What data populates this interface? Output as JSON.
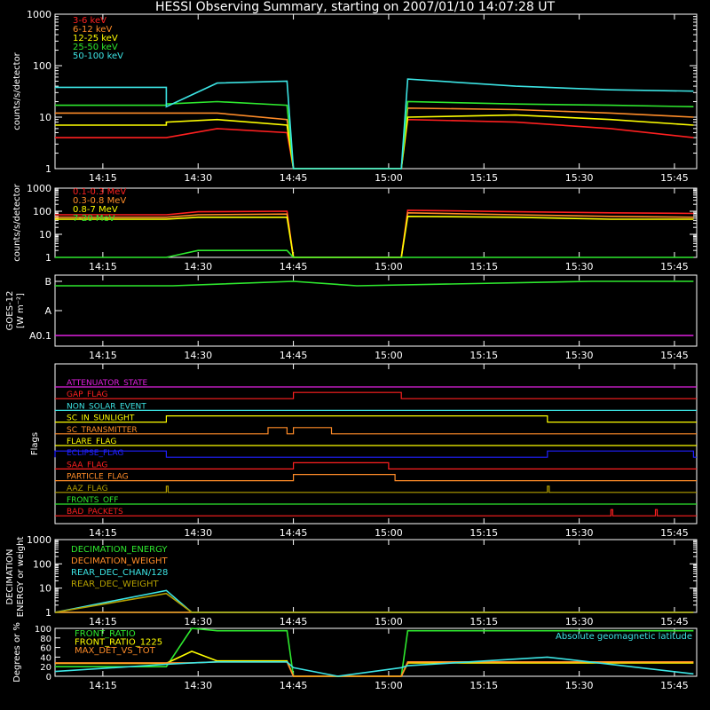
{
  "title": "HESSI Observing Summary, starting on 2007/01/10 14:07:28 UT",
  "colors": {
    "axis": "#ffffff",
    "red": "#ff2020",
    "orange": "#ff8c28",
    "yellow": "#ffff00",
    "green": "#2ee82e",
    "cyan": "#3ce4e4",
    "magenta": "#e020e0",
    "blue": "#2020ff",
    "olive": "#b4a000"
  },
  "time_ticks": [
    "14:15",
    "14:30",
    "14:45",
    "15:00",
    "15:15",
    "15:30",
    "15:45"
  ],
  "panels": {
    "lo": {
      "ylabel": "counts/s/detector",
      "yticks": [
        "1",
        "10",
        "100",
        "1000"
      ],
      "legend": [
        {
          "label": "3-6 keV",
          "color": "#ff2020"
        },
        {
          "label": "6-12 keV",
          "color": "#ff8c28"
        },
        {
          "label": "12-25 keV",
          "color": "#ffff00"
        },
        {
          "label": "25-50 keV",
          "color": "#2ee82e"
        },
        {
          "label": "50-100 keV",
          "color": "#3ce4e4"
        }
      ]
    },
    "hi": {
      "ylabel": "counts/s/detector",
      "yticks": [
        "1",
        "10",
        "100",
        "1000"
      ],
      "legend": [
        {
          "label": "0.1-0.3 MeV",
          "color": "#ff2020"
        },
        {
          "label": "0.3-0.8 MeV",
          "color": "#ff8c28"
        },
        {
          "label": "0.8-7 MeV",
          "color": "#ffff00"
        },
        {
          "label": "7-20 MeV",
          "color": "#2ee82e"
        }
      ]
    },
    "goes": {
      "ylabel1": "GOES-12",
      "ylabel2": "[W m⁻²]",
      "yticks": [
        "A0.1",
        "A",
        "B"
      ]
    },
    "flags": {
      "ylabel": "Flags",
      "items": [
        {
          "label": "ATTENUATOR_STATE",
          "color": "#e020e0"
        },
        {
          "label": "GAP_FLAG",
          "color": "#ff2020"
        },
        {
          "label": "NON_SOLAR_EVENT",
          "color": "#3ce4e4"
        },
        {
          "label": "SC_IN_SUNLIGHT",
          "color": "#ffff00"
        },
        {
          "label": "SC_TRANSMITTER",
          "color": "#ff8c28"
        },
        {
          "label": "FLARE_FLAG",
          "color": "#ffff00"
        },
        {
          "label": "ECLIPSE_FLAG",
          "color": "#2020ff"
        },
        {
          "label": "SAA_FLAG",
          "color": "#ff2020"
        },
        {
          "label": "PARTICLE_FLAG",
          "color": "#ff8c28"
        },
        {
          "label": "AAZ_FLAG",
          "color": "#b4a000"
        },
        {
          "label": "FRONTS_OFF",
          "color": "#2ee82e"
        },
        {
          "label": "BAD_PACKETS",
          "color": "#ff2020"
        }
      ]
    },
    "dec": {
      "ylabel1": "DECIMATION",
      "ylabel2": "ENERGY or weight",
      "yticks": [
        "1",
        "10",
        "100",
        "1000"
      ],
      "legend": [
        {
          "label": "DECIMATION_ENERGY",
          "color": "#2ee82e"
        },
        {
          "label": "DECIMATION_WEIGHT",
          "color": "#ff8c28"
        },
        {
          "label": "REAR_DEC_CHAN/128",
          "color": "#3ce4e4"
        },
        {
          "label": "REAR_DEC_WEIGHT",
          "color": "#b4a000"
        }
      ]
    },
    "misc": {
      "ylabel": "Degrees or %",
      "yticks": [
        "0",
        "20",
        "40",
        "60",
        "80",
        "100"
      ],
      "legend": [
        {
          "label": "FRONT_RATIO",
          "color": "#2ee82e"
        },
        {
          "label": "FRONT_RATIO_1225",
          "color": "#ffff00"
        },
        {
          "label": "MAX_DET_VS_TOT",
          "color": "#ff8c28"
        }
      ],
      "note": {
        "label": "Absolute geomagnetic latitude",
        "color": "#3ce4e4"
      }
    }
  },
  "chart_data": [
    {
      "type": "line",
      "title": "HESSI Observing Summary, starting on 2007/01/10 14:07:28 UT",
      "ylabel": "counts/s/detector",
      "yscale": "log",
      "ylim": [
        1,
        1000
      ],
      "x": [
        "14:07",
        "14:25",
        "14:25",
        "14:33",
        "14:44",
        "14:45",
        "15:02",
        "15:03",
        "15:20",
        "15:35",
        "15:48"
      ],
      "series": [
        {
          "name": "3-6 keV",
          "values": [
            4,
            4,
            4,
            6,
            5,
            1,
            1,
            9,
            8,
            6,
            4
          ]
        },
        {
          "name": "6-12 keV",
          "values": [
            12,
            12,
            12,
            12,
            9,
            1,
            1,
            15,
            14,
            12,
            10
          ]
        },
        {
          "name": "12-25 keV",
          "values": [
            7,
            7,
            8,
            9,
            7,
            1,
            1,
            10,
            11,
            9,
            7
          ]
        },
        {
          "name": "25-50 keV",
          "values": [
            17,
            17,
            18,
            20,
            17,
            1,
            1,
            20,
            18,
            17,
            16
          ]
        },
        {
          "name": "50-100 keV",
          "values": [
            38,
            38,
            16,
            46,
            50,
            1,
            1,
            55,
            40,
            34,
            32
          ]
        }
      ]
    },
    {
      "type": "line",
      "ylabel": "counts/s/detector",
      "yscale": "log",
      "ylim": [
        1,
        1000
      ],
      "x": [
        "14:07",
        "14:25",
        "14:30",
        "14:44",
        "14:45",
        "15:02",
        "15:03",
        "15:20",
        "15:35",
        "15:48"
      ],
      "series": [
        {
          "name": "0.1-0.3 MeV",
          "values": [
            70,
            70,
            95,
            100,
            1,
            1,
            110,
            95,
            85,
            80
          ]
        },
        {
          "name": "0.3-0.8 MeV",
          "values": [
            55,
            55,
            70,
            75,
            1,
            1,
            85,
            70,
            60,
            55
          ]
        },
        {
          "name": "0.8-7 MeV",
          "values": [
            45,
            45,
            55,
            55,
            1,
            1,
            60,
            55,
            45,
            45
          ]
        },
        {
          "name": "7-20 MeV",
          "values": [
            1,
            1,
            2,
            2,
            1,
            1,
            1,
            1,
            1,
            1
          ]
        }
      ]
    },
    {
      "type": "line",
      "ylabel": "GOES-12 [W m⁻²]",
      "yticks": [
        "A0.1",
        "A",
        "B"
      ],
      "x": [
        "14:07",
        "14:26",
        "14:45",
        "14:55",
        "15:32",
        "15:48"
      ],
      "series": [
        {
          "values": [
            "B-",
            "B-",
            "B",
            "B-",
            "B",
            "B"
          ]
        },
        {
          "values": [
            "A0.1",
            "A0.1",
            "A0.1",
            "A0.1",
            "A0.1",
            "A0.1"
          ]
        }
      ]
    },
    {
      "type": "table",
      "ylabel": "Flags",
      "columns": [
        "flag",
        "on_intervals"
      ],
      "rows": [
        [
          "ATTENUATOR_STATE",
          "none"
        ],
        [
          "GAP_FLAG",
          "14:45-15:02"
        ],
        [
          "NON_SOLAR_EVENT",
          "none"
        ],
        [
          "SC_IN_SUNLIGHT",
          "14:25-15:25"
        ],
        [
          "SC_TRANSMITTER",
          "14:41-14:44, 14:45-14:51"
        ],
        [
          "FLARE_FLAG",
          "none"
        ],
        [
          "ECLIPSE_FLAG",
          "14:07-14:25, 15:25-15:48"
        ],
        [
          "SAA_FLAG",
          "14:45-15:00"
        ],
        [
          "PARTICLE_FLAG",
          "14:45-15:01"
        ],
        [
          "AAZ_FLAG",
          "14:25, 15:25"
        ],
        [
          "FRONTS_OFF",
          "none"
        ],
        [
          "BAD_PACKETS",
          "15:35, 15:42"
        ]
      ]
    },
    {
      "type": "line",
      "ylabel": "DECIMATION ENERGY or weight",
      "yscale": "log",
      "ylim": [
        1,
        1000
      ],
      "x": [
        "14:07",
        "14:25",
        "14:29",
        "15:48"
      ],
      "series": [
        {
          "name": "DECIMATION_ENERGY",
          "values": [
            1,
            1,
            1,
            1
          ]
        },
        {
          "name": "DECIMATION_WEIGHT",
          "values": [
            1,
            1,
            1,
            1
          ]
        },
        {
          "name": "REAR_DEC_CHAN/128",
          "values": [
            1,
            8,
            1,
            1
          ]
        },
        {
          "name": "REAR_DEC_WEIGHT",
          "values": [
            1,
            6,
            1,
            1
          ]
        }
      ]
    },
    {
      "type": "line",
      "ylabel": "Degrees or %",
      "ylim": [
        0,
        100
      ],
      "x": [
        "14:07",
        "14:25",
        "14:29",
        "14:33",
        "14:44",
        "14:45",
        "14:52",
        "15:02",
        "15:03",
        "15:25",
        "15:48"
      ],
      "series": [
        {
          "name": "FRONT_RATIO",
          "values": [
            20,
            20,
            100,
            95,
            95,
            0,
            0,
            0,
            95,
            95,
            95
          ]
        },
        {
          "name": "FRONT_RATIO_1225",
          "values": [
            27,
            27,
            52,
            32,
            32,
            0,
            0,
            0,
            28,
            28,
            28
          ]
        },
        {
          "name": "MAX_DET_VS_TOT",
          "values": [
            28,
            28,
            28,
            30,
            30,
            0,
            0,
            0,
            30,
            30,
            30
          ]
        },
        {
          "name": "Absolute geomagnetic latitude",
          "values": [
            10,
            25,
            28,
            30,
            30,
            18,
            0,
            18,
            22,
            40,
            5
          ]
        }
      ]
    }
  ]
}
